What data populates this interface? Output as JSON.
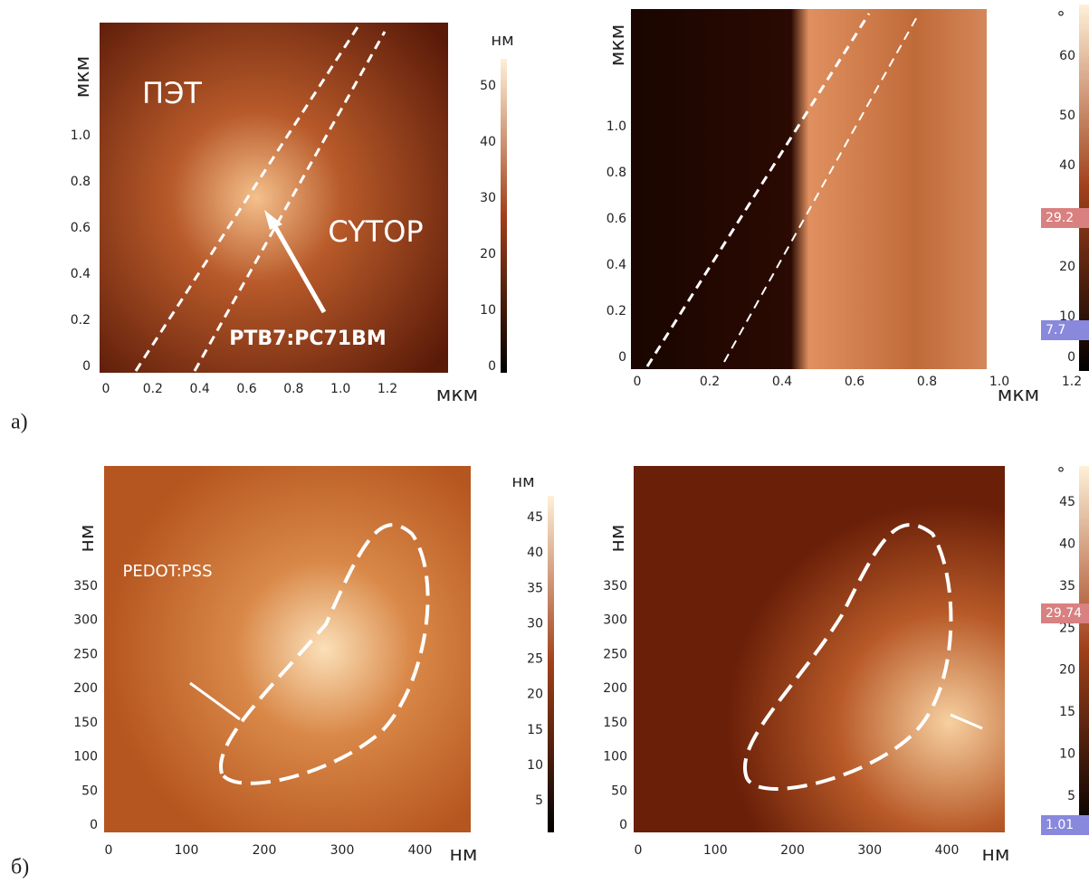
{
  "rows": [
    {
      "label": "а)",
      "images": [
        {
          "ylabel": "мкм",
          "xlabel": "мкм",
          "yticks": [
            "0",
            "0.2",
            "0.4",
            "0.6",
            "0.8",
            "1.0"
          ],
          "xticks": [
            "0",
            "0.2",
            "0.4",
            "0.6",
            "0.8",
            "1.0",
            "1.2"
          ],
          "scale_unit": "нм",
          "scale_ticks": [
            "0",
            "10",
            "20",
            "30",
            "40",
            "50"
          ],
          "annotations": [
            "ПЭТ",
            "CYTOP",
            "PTB7:PC71BM"
          ]
        },
        {
          "ylabel": "мкм",
          "xlabel": "мкм",
          "yticks": [
            "0",
            "0.2",
            "0.4",
            "0.6",
            "0.8",
            "1.0"
          ],
          "xticks": [
            "0",
            "0.2",
            "0.4",
            "0.6",
            "0.8",
            "1.0",
            "1.2"
          ],
          "scale_unit": "°",
          "scale_ticks": [
            "60",
            "50",
            "40",
            "20",
            "10",
            "0"
          ],
          "scale_markers": [
            "29.2",
            "7.7"
          ]
        }
      ]
    },
    {
      "label": "б)",
      "images": [
        {
          "ylabel": "нм",
          "xlabel": "нм",
          "yticks": [
            "0",
            "50",
            "100",
            "150",
            "200",
            "250",
            "300",
            "350"
          ],
          "xticks": [
            "0",
            "100",
            "200",
            "300",
            "400"
          ],
          "scale_unit": "нм",
          "scale_ticks": [
            "45",
            "40",
            "35",
            "30",
            "25",
            "20",
            "15",
            "10",
            "5"
          ],
          "annotations": [
            "PEDOT:PSS"
          ]
        },
        {
          "ylabel": "нм",
          "xlabel": "нм",
          "yticks": [
            "0",
            "50",
            "100",
            "150",
            "200",
            "250",
            "300",
            "350"
          ],
          "xticks": [
            "0",
            "100",
            "200",
            "300",
            "400"
          ],
          "scale_unit": "°",
          "scale_ticks": [
            "45",
            "40",
            "35",
            "25",
            "20",
            "15",
            "10",
            "5"
          ],
          "scale_markers": [
            "29.74",
            "1.01"
          ]
        }
      ]
    }
  ]
}
